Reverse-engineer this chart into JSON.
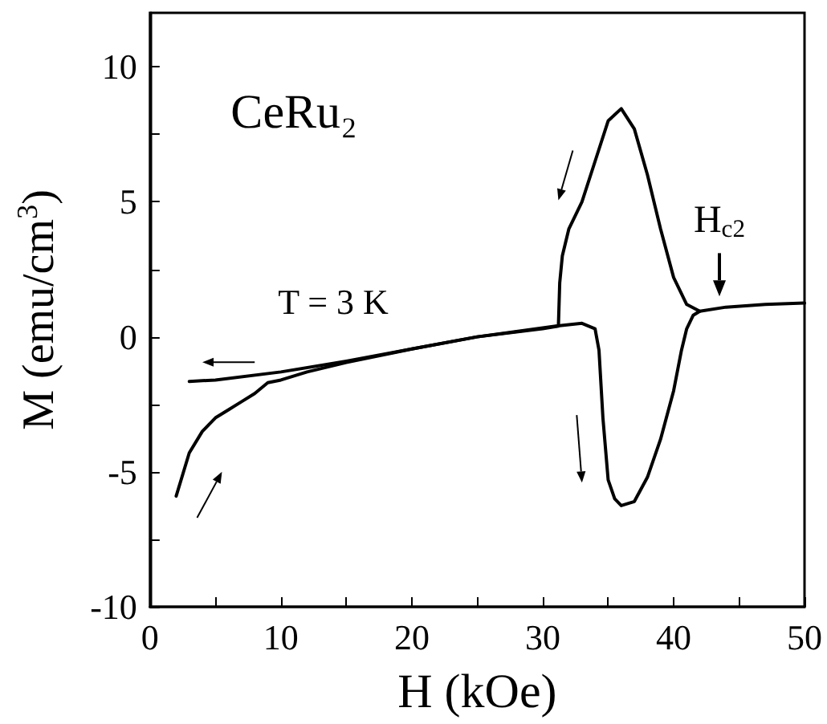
{
  "chart_data": {
    "type": "line",
    "xlabel": "H (kOe)",
    "ylabel": "M (emu/cm$^{3}$)",
    "xlim": [
      0,
      50
    ],
    "xticks": [
      0,
      {
        "value": 5,
        "label": null
      },
      10,
      {
        "value": 15,
        "label": null
      },
      20,
      {
        "value": 25,
        "label": null
      },
      30,
      {
        "value": 35,
        "label": null
      },
      40,
      {
        "value": 45,
        "label": null
      },
      50
    ],
    "ylim": [
      -10,
      12
    ],
    "yticks": [
      -10,
      {
        "value": -7.5,
        "label": null
      },
      -5,
      {
        "value": -2.5,
        "label": null
      },
      0,
      {
        "value": 2.5,
        "label": null
      },
      5,
      {
        "value": 7.5,
        "label": null
      },
      10
    ],
    "marker": "none",
    "line_style": "solid",
    "annotations": [
      "CeRu₂",
      "T = 3 K",
      "H$_{c2}$"
    ],
    "series": [
      {
        "color": "#000000",
        "x": [
          2,
          3,
          4,
          5,
          6,
          7,
          8,
          9,
          10,
          12,
          15,
          20,
          25,
          28,
          31,
          33,
          34,
          34.3,
          34.6,
          35,
          35.5,
          36,
          37,
          38,
          39,
          40,
          40.6,
          41,
          41.5,
          42,
          44,
          47,
          50
        ],
        "values": [
          -5.9,
          -4.3,
          -3.5,
          -3,
          -2.7,
          -2.4,
          -2.1,
          -1.7,
          -1.6,
          -1.3,
          -0.95,
          -0.45,
          0,
          0.2,
          0.4,
          0.5,
          0.3,
          -0.5,
          -3,
          -5.3,
          -6,
          -6.25,
          -6.1,
          -5.2,
          -3.8,
          -2,
          -0.5,
          0.3,
          0.8,
          0.95,
          1.1,
          1.2,
          1.25
        ]
      },
      {
        "color": "#000000",
        "x": [
          42,
          41,
          40,
          39,
          38,
          37,
          36,
          35,
          34,
          33,
          32,
          31.5,
          31.3,
          31.2,
          30,
          25,
          20,
          15,
          10,
          5,
          3
        ],
        "values": [
          0.95,
          1.2,
          2.2,
          4,
          6,
          7.7,
          8.45,
          8,
          6.5,
          5,
          4,
          3,
          2,
          0.4,
          0.3,
          0,
          -0.45,
          -0.9,
          -1.3,
          -1.6,
          -1.65
        ]
      }
    ]
  }
}
